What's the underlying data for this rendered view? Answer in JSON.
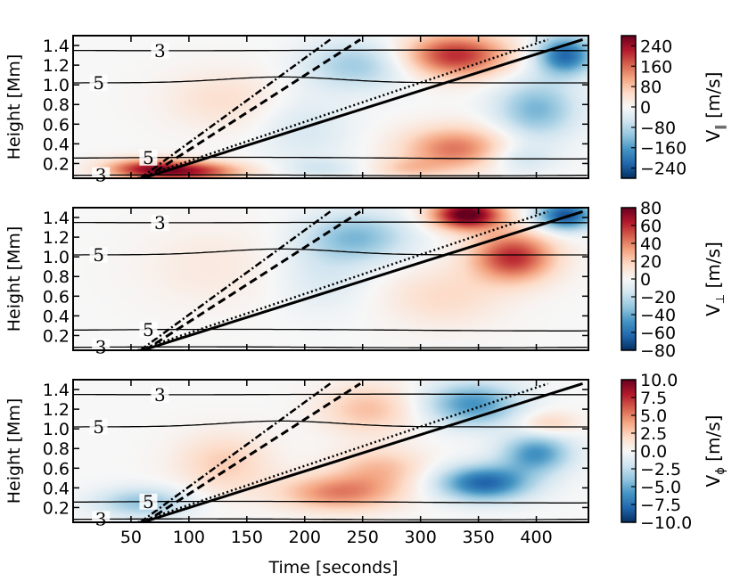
{
  "chart_data": {
    "type": "heatmap",
    "x_label": "Time [seconds]",
    "x_ticks": [
      50,
      100,
      150,
      200,
      250,
      300,
      350,
      400
    ],
    "xlim": [
      0,
      445
    ],
    "y_label": "Height [Mm]",
    "y_ticks": [
      "0.2",
      "0.4",
      "0.6",
      "0.8",
      "1.0",
      "1.2",
      "1.4"
    ],
    "y_tick_values": [
      0.2,
      0.4,
      0.6,
      0.8,
      1.0,
      1.2,
      1.4
    ],
    "ylim": [
      0.05,
      1.5
    ],
    "contour_labels": [
      "3",
      "5",
      "5",
      "3"
    ],
    "ray_lines": {
      "solid": {
        "t0": 60,
        "h0": 0.05,
        "t1": 440,
        "h1": 1.46
      },
      "dotted": {
        "t0": 56,
        "h0": 0.05,
        "t1": 410,
        "h1": 1.46
      },
      "dashed": {
        "t0": 62,
        "h0": 0.05,
        "t1": 248,
        "h1": 1.46
      },
      "dashdot": {
        "t0": 58,
        "h0": 0.05,
        "t1": 222,
        "h1": 1.46
      }
    },
    "panels": [
      {
        "name": "parallel",
        "colorbar_symbol": "V",
        "colorbar_subscript": "∥",
        "colorbar_unit": "[m/s]",
        "colorbar_ticks": [
          "240",
          "160",
          "80",
          "0",
          "−80",
          "−160",
          "−240"
        ],
        "colorbar_tick_values": [
          240,
          160,
          80,
          0,
          -80,
          -160,
          -240
        ],
        "clim": [
          -280,
          280
        ],
        "blobs": [
          {
            "t": 100,
            "h": 0.12,
            "v": 210,
            "st": 45,
            "sh": 0.1
          },
          {
            "t": 60,
            "h": 0.15,
            "v": 150,
            "st": 35,
            "sh": 0.1
          },
          {
            "t": 130,
            "h": 0.85,
            "v": 45,
            "st": 50,
            "sh": 0.3
          },
          {
            "t": 200,
            "h": 0.55,
            "v": -45,
            "st": 40,
            "sh": 0.35
          },
          {
            "t": 215,
            "h": 0.15,
            "v": -45,
            "st": 30,
            "sh": 0.1
          },
          {
            "t": 245,
            "h": 1.2,
            "v": -100,
            "st": 45,
            "sh": 0.25
          },
          {
            "t": 330,
            "h": 1.3,
            "v": 210,
            "st": 45,
            "sh": 0.22
          },
          {
            "t": 330,
            "h": 0.35,
            "v": 150,
            "st": 45,
            "sh": 0.22
          },
          {
            "t": 290,
            "h": 0.15,
            "v": 60,
            "st": 30,
            "sh": 0.1
          },
          {
            "t": 400,
            "h": 0.75,
            "v": -130,
            "st": 35,
            "sh": 0.3
          },
          {
            "t": 425,
            "h": 1.3,
            "v": -220,
            "st": 25,
            "sh": 0.2
          },
          {
            "t": 385,
            "h": 0.25,
            "v": -60,
            "st": 30,
            "sh": 0.15
          }
        ]
      },
      {
        "name": "perpendicular",
        "colorbar_symbol": "V",
        "colorbar_subscript": "⊥",
        "colorbar_unit": "[m/s]",
        "colorbar_ticks": [
          "80",
          "60",
          "40",
          "20",
          "0",
          "−20",
          "−40",
          "−60",
          "−80"
        ],
        "colorbar_tick_values": [
          80,
          60,
          40,
          20,
          0,
          -20,
          -40,
          -60,
          -80
        ],
        "clim": [
          -80,
          80
        ],
        "blobs": [
          {
            "t": 120,
            "h": 0.9,
            "v": 8,
            "st": 60,
            "sh": 0.4
          },
          {
            "t": 245,
            "h": 1.2,
            "v": -35,
            "st": 45,
            "sh": 0.25
          },
          {
            "t": 215,
            "h": 0.8,
            "v": -12,
            "st": 40,
            "sh": 0.35
          },
          {
            "t": 340,
            "h": 1.43,
            "v": 85,
            "st": 30,
            "sh": 0.15
          },
          {
            "t": 380,
            "h": 1.0,
            "v": 60,
            "st": 35,
            "sh": 0.25
          },
          {
            "t": 425,
            "h": 1.42,
            "v": -70,
            "st": 25,
            "sh": 0.15
          },
          {
            "t": 320,
            "h": 0.6,
            "v": 15,
            "st": 50,
            "sh": 0.3
          }
        ]
      },
      {
        "name": "azimuthal",
        "colorbar_symbol": "V",
        "colorbar_subscript": "ϕ",
        "colorbar_unit": "[m/s]",
        "colorbar_ticks": [
          "10.0",
          "7.5",
          "5.0",
          "2.5",
          "0.0",
          "−2.5",
          "−5.0",
          "−7.5",
          "−10.0"
        ],
        "colorbar_tick_values": [
          10.0,
          7.5,
          5.0,
          2.5,
          0.0,
          -2.5,
          -5.0,
          -7.5,
          -10.0
        ],
        "clim": [
          -10,
          10
        ],
        "blobs": [
          {
            "t": 60,
            "h": 0.25,
            "v": -4,
            "st": 40,
            "sh": 0.15
          },
          {
            "t": 130,
            "h": 0.65,
            "v": 2.5,
            "st": 40,
            "sh": 0.3
          },
          {
            "t": 230,
            "h": 0.35,
            "v": 5,
            "st": 50,
            "sh": 0.18
          },
          {
            "t": 265,
            "h": 0.6,
            "v": 3,
            "st": 40,
            "sh": 0.2
          },
          {
            "t": 255,
            "h": 1.2,
            "v": 3,
            "st": 40,
            "sh": 0.25
          },
          {
            "t": 345,
            "h": 1.25,
            "v": -6,
            "st": 40,
            "sh": 0.22
          },
          {
            "t": 355,
            "h": 0.45,
            "v": -8,
            "st": 40,
            "sh": 0.18
          },
          {
            "t": 400,
            "h": 0.75,
            "v": -6,
            "st": 30,
            "sh": 0.2
          },
          {
            "t": 410,
            "h": 1.05,
            "v": 2.5,
            "st": 25,
            "sh": 0.12
          }
        ]
      }
    ]
  }
}
